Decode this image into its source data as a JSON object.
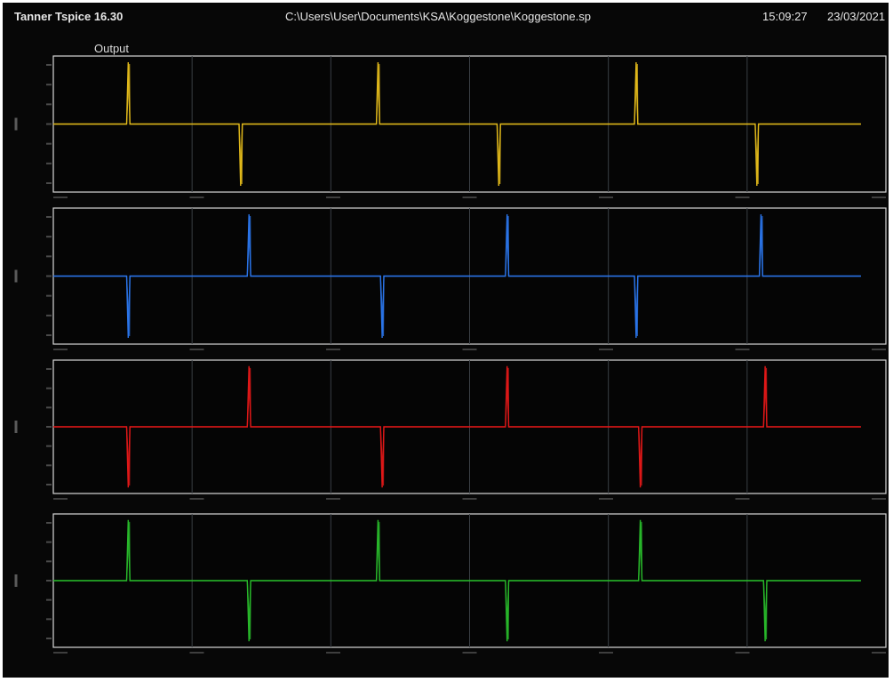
{
  "titlebar": {
    "app_title": "Tanner  Tspice 16.30",
    "file_path": "C:\\Users\\User\\Documents\\KSA\\Koggestone\\Koggestone.sp",
    "time": "15:09:27",
    "date": "23/03/2021"
  },
  "output_label": "Output",
  "chart_data": [
    {
      "type": "line",
      "series": [
        {
          "color": "#e0b81a",
          "x": [
            0,
            75,
            88,
            90,
            92,
            105,
            210,
            223,
            225,
            227,
            240,
            375,
            388,
            390,
            392,
            405,
            520,
            533,
            535,
            537,
            550,
            685,
            698,
            700,
            702,
            715,
            830,
            843,
            845,
            847,
            860,
            970
          ],
          "values": [
            0,
            0,
            0,
            1,
            0,
            0,
            0,
            0,
            -1,
            0,
            0,
            0,
            0,
            1,
            0,
            0,
            0,
            0,
            -1,
            0,
            0,
            0,
            0,
            1,
            0,
            0,
            0,
            0,
            -1,
            0,
            0,
            0
          ]
        }
      ],
      "xlim": [
        0,
        1000
      ],
      "ylim": [
        -1.1,
        1.1
      ]
    },
    {
      "type": "line",
      "series": [
        {
          "color": "#2a74e8",
          "x": [
            0,
            75,
            88,
            90,
            92,
            105,
            220,
            233,
            235,
            237,
            250,
            380,
            393,
            395,
            397,
            410,
            530,
            543,
            545,
            547,
            560,
            685,
            698,
            700,
            702,
            715,
            835,
            848,
            850,
            852,
            865,
            970
          ],
          "values": [
            0,
            0,
            0,
            -1,
            0,
            0,
            0,
            0,
            1,
            0,
            0,
            0,
            0,
            -1,
            0,
            0,
            0,
            0,
            1,
            0,
            0,
            0,
            0,
            -1,
            0,
            0,
            0,
            0,
            1,
            0,
            0,
            0
          ]
        }
      ],
      "xlim": [
        0,
        1000
      ],
      "ylim": [
        -1.1,
        1.1
      ]
    },
    {
      "type": "line",
      "series": [
        {
          "color": "#e01818",
          "x": [
            0,
            75,
            88,
            90,
            92,
            105,
            220,
            233,
            235,
            237,
            250,
            380,
            393,
            395,
            397,
            410,
            530,
            543,
            545,
            547,
            560,
            690,
            703,
            705,
            707,
            720,
            840,
            853,
            855,
            857,
            870,
            970
          ],
          "values": [
            0,
            0,
            0,
            -1,
            0,
            0,
            0,
            0,
            1,
            0,
            0,
            0,
            0,
            -1,
            0,
            0,
            0,
            0,
            1,
            0,
            0,
            0,
            0,
            -1,
            0,
            0,
            0,
            0,
            1,
            0,
            0,
            0
          ]
        }
      ],
      "xlim": [
        0,
        1000
      ],
      "ylim": [
        -1.1,
        1.1
      ]
    },
    {
      "type": "line",
      "series": [
        {
          "color": "#28b82a",
          "x": [
            0,
            75,
            88,
            90,
            92,
            105,
            220,
            233,
            235,
            237,
            250,
            375,
            388,
            390,
            392,
            405,
            530,
            543,
            545,
            547,
            560,
            690,
            703,
            705,
            707,
            720,
            840,
            853,
            855,
            857,
            870,
            970
          ],
          "values": [
            0,
            0,
            0,
            1,
            0,
            0,
            0,
            0,
            -1,
            0,
            0,
            0,
            0,
            1,
            0,
            0,
            0,
            0,
            -1,
            0,
            0,
            0,
            0,
            1,
            0,
            0,
            0,
            0,
            -1,
            0,
            0,
            0
          ]
        }
      ],
      "xlim": [
        0,
        1000
      ],
      "ylim": [
        -1.1,
        1.1
      ]
    }
  ],
  "colors": {
    "background": "#070707",
    "frame": "#d8d8d8",
    "grid": "#3a3f44"
  }
}
